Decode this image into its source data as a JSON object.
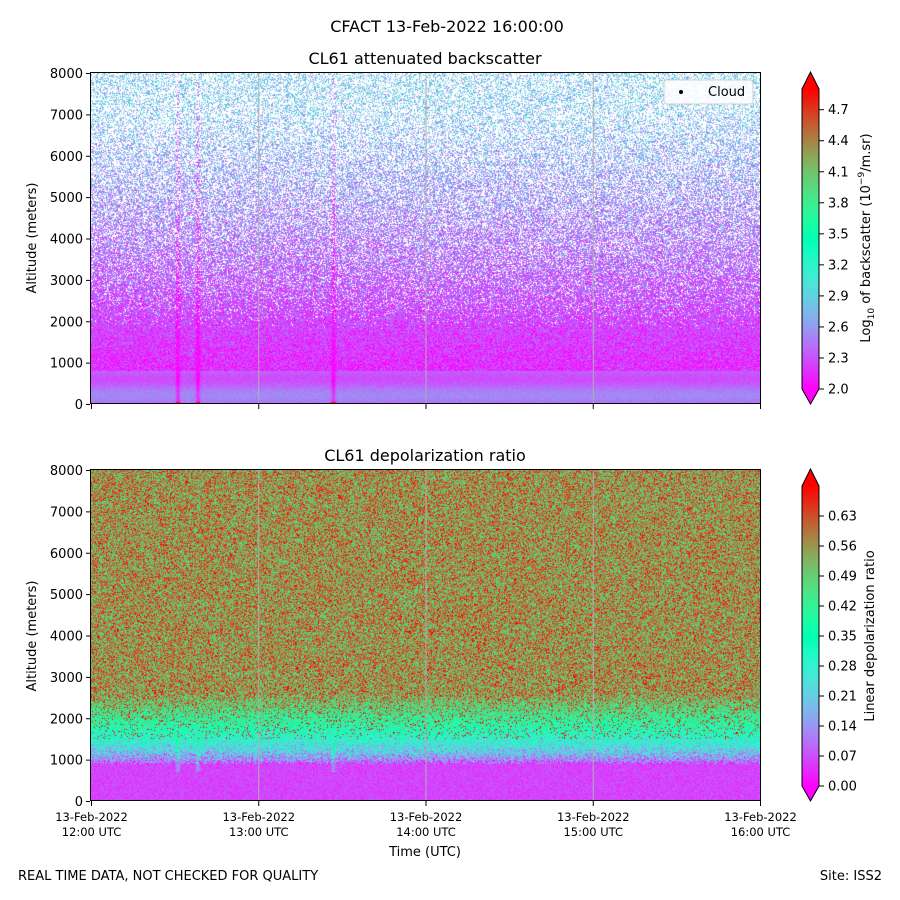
{
  "figure": {
    "suptitle": "CFACT 13-Feb-2022 16:00:00",
    "footer_left": "REAL TIME DATA, NOT CHECKED FOR QUALITY",
    "footer_right": "Site: ISS2"
  },
  "chart_data": [
    {
      "type": "heatmap",
      "title": "CL61 attenuated backscatter",
      "xlabel": "",
      "ylabel": "Altitude (meters)",
      "ylim": [
        0,
        8000
      ],
      "yticks": [
        0,
        1000,
        2000,
        3000,
        4000,
        5000,
        6000,
        7000,
        8000
      ],
      "xlim": [
        0,
        4
      ],
      "xticks": [
        0,
        1,
        2,
        3,
        4
      ],
      "xtick_labels": [],
      "colormap": "rainbow",
      "colorbar": {
        "label_prefix": "Log",
        "label_sub": "10",
        "label_middle": " of backscatter (10",
        "label_sup": "−9",
        "label_suffix": "/m.sr)",
        "vmin": 2.0,
        "vmax": 4.9,
        "ticks": [
          2.0,
          2.3,
          2.6,
          2.9,
          3.2,
          3.5,
          3.8,
          4.1,
          4.4,
          4.7
        ],
        "tick_labels": [
          "2.0",
          "2.3",
          "2.6",
          "2.9",
          "3.2",
          "3.5",
          "3.8",
          "4.1",
          "4.4",
          "4.7"
        ],
        "extend": "both"
      },
      "legend": {
        "entries": [
          "Cloud"
        ],
        "placement": "top-right"
      },
      "grid": "x",
      "field_description_values": {
        "surface_mean": 2.4,
        "boundary_layer_top_m": 800,
        "aloft_mean_near_2000m": 2.15,
        "aloft_mean_near_7000m": 2.8,
        "data_fill_low": 1.0,
        "data_fill_high": 0.35
      }
    },
    {
      "type": "heatmap",
      "title": "CL61 depolarization ratio",
      "xlabel": "Time (UTC)",
      "ylabel": "Altitude (meters)",
      "ylim": [
        0,
        8000
      ],
      "yticks": [
        0,
        1000,
        2000,
        3000,
        4000,
        5000,
        6000,
        7000,
        8000
      ],
      "xlim": [
        0,
        4
      ],
      "xticks": [
        0,
        1,
        2,
        3,
        4
      ],
      "xtick_labels": [
        [
          "13-Feb-2022",
          "12:00 UTC"
        ],
        [
          "13-Feb-2022",
          "13:00 UTC"
        ],
        [
          "13-Feb-2022",
          "14:00 UTC"
        ],
        [
          "13-Feb-2022",
          "15:00 UTC"
        ],
        [
          "13-Feb-2022",
          "16:00 UTC"
        ]
      ],
      "colormap": "rainbow",
      "colorbar": {
        "label": "Linear depolarization ratio",
        "vmin": 0.0,
        "vmax": 0.7,
        "ticks": [
          0.0,
          0.07,
          0.14,
          0.21,
          0.28,
          0.35,
          0.42,
          0.49,
          0.56,
          0.63
        ],
        "tick_labels": [
          "0.00",
          "0.07",
          "0.14",
          "0.21",
          "0.28",
          "0.35",
          "0.42",
          "0.49",
          "0.56",
          "0.63"
        ],
        "extend": "both"
      },
      "grid": "x",
      "field_description_values": {
        "low_level_mean": 0.06,
        "transition_base_m": 900,
        "transition_top_m": 2600,
        "aloft_mean": 0.55,
        "aloft_spread": 0.12
      }
    }
  ]
}
